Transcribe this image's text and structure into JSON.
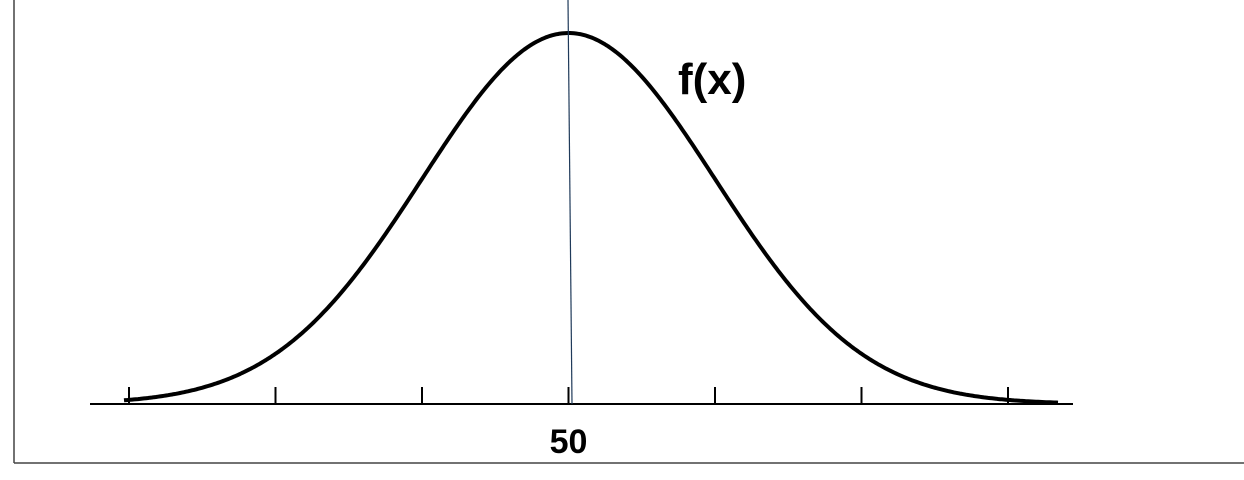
{
  "chart_data": {
    "type": "line",
    "title": "",
    "xlabel": "",
    "ylabel": "",
    "curve_label": "f(x)",
    "mean": 50,
    "tick_labels": [
      "",
      "",
      "",
      "50",
      "",
      "",
      ""
    ],
    "tick_count": 7,
    "center_tick_index": 3,
    "series": [
      {
        "name": "f(x)",
        "distribution": "normal",
        "mean": 50
      }
    ],
    "grid": false,
    "legend": "none",
    "colors": {
      "curve": "#000000",
      "axis": "#000000",
      "center_line": "#1f3a5a",
      "frame": "#444444"
    }
  }
}
